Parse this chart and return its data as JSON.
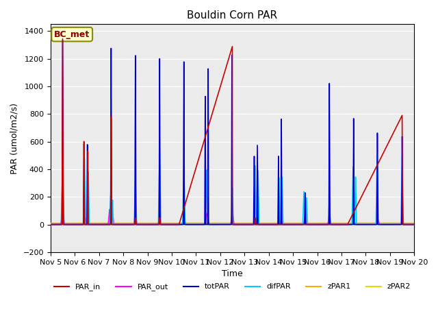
{
  "title": "Bouldin Corn PAR",
  "xlabel": "Time",
  "ylabel": "PAR (umol/m2/s)",
  "ylim": [
    -200,
    1450
  ],
  "xlim": [
    0,
    15
  ],
  "xtick_labels": [
    "Nov 5",
    "Nov 6",
    "Nov 7",
    "Nov 8",
    "Nov 9",
    "Nov 10",
    "Nov 11",
    "Nov 12",
    "Nov 13",
    "Nov 14",
    "Nov 15",
    "Nov 16",
    "Nov 17",
    "Nov 18",
    "Nov 19",
    "Nov 20"
  ],
  "xtick_positions": [
    0,
    1,
    2,
    3,
    4,
    5,
    6,
    7,
    8,
    9,
    10,
    11,
    12,
    13,
    14,
    15
  ],
  "annotation_text": "BC_met",
  "colors": {
    "PAR_in": "#cc0000",
    "PAR_out": "#ff00ff",
    "totPAR": "#0000cc",
    "difPAR": "#00ccff",
    "zPAR1": "#ffaa00",
    "zPAR2": "#dddd00"
  },
  "bg_color": "#ebebeb",
  "legend_labels": [
    "PAR_in",
    "PAR_out",
    "totPAR",
    "difPAR",
    "zPAR1",
    "zPAR2"
  ]
}
